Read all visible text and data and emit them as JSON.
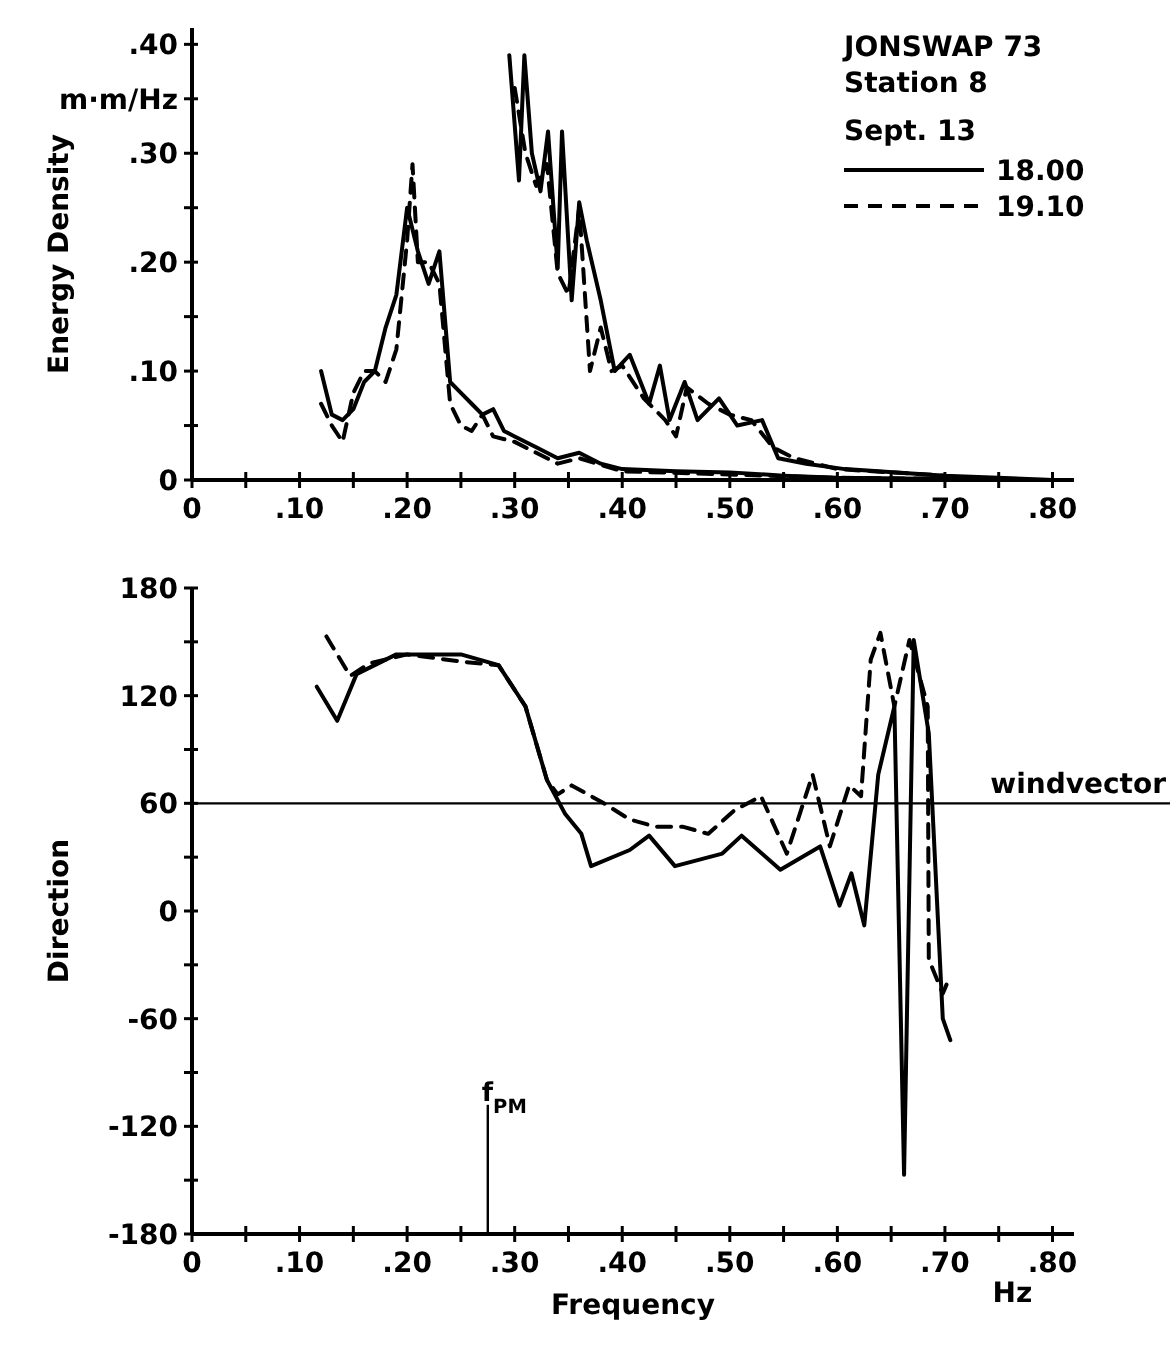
{
  "chart_data": [
    {
      "type": "line",
      "title": "JONSWAP 73",
      "subtitle": "Station 8",
      "ylabel": "Energy Density",
      "legend_title": "Sept. 13",
      "legend": "top right",
      "annotations": [
        "m·m/Hz"
      ],
      "xlim": [
        0,
        0.82
      ],
      "ylim": [
        0,
        0.415
      ],
      "xticks": [
        0,
        {
          "value": 0.05,
          "label": null
        },
        {
          "value": 0.1,
          "label": ".10"
        },
        {
          "value": 0.15,
          "label": null
        },
        {
          "value": 0.2,
          "label": ".20"
        },
        {
          "value": 0.25,
          "label": null
        },
        {
          "value": 0.3,
          "label": ".30"
        },
        {
          "value": 0.35,
          "label": null
        },
        {
          "value": 0.4,
          "label": ".40"
        },
        {
          "value": 0.45,
          "label": null
        },
        {
          "value": 0.5,
          "label": ".50"
        },
        {
          "value": 0.55,
          "label": null
        },
        {
          "value": 0.6,
          "label": ".60"
        },
        {
          "value": 0.65,
          "label": null
        },
        {
          "value": 0.7,
          "label": ".70"
        },
        {
          "value": 0.75,
          "label": null
        },
        {
          "value": 0.8,
          "label": ".80"
        }
      ],
      "yticks": [
        0,
        {
          "value": 0.05,
          "label": null
        },
        {
          "value": 0.1,
          "label": ".10"
        },
        {
          "value": 0.15,
          "label": null
        },
        {
          "value": 0.2,
          "label": ".20"
        },
        {
          "value": 0.25,
          "label": null
        },
        {
          "value": 0.3,
          "label": ".30"
        },
        {
          "value": 0.35,
          "label": null
        },
        {
          "value": 0.4,
          "label": ".40"
        }
      ],
      "series": [
        {
          "name": "18.00",
          "color": "#000000",
          "line_style": "solid",
          "x": [
            0.12,
            0.13,
            0.14,
            0.15,
            0.16,
            0.17,
            0.18,
            0.19,
            0.2,
            0.21,
            0.22,
            0.23,
            0.24,
            0.25,
            0.26,
            0.27,
            0.28,
            0.29,
            0.3,
            0.32,
            0.34,
            0.36,
            0.38,
            0.4,
            0.45,
            0.5,
            0.55,
            0.6,
            0.7,
            0.8
          ],
          "values": [
            0.1,
            0.06,
            0.055,
            0.065,
            0.09,
            0.1,
            0.14,
            0.17,
            0.25,
            0.21,
            0.18,
            0.21,
            0.09,
            0.08,
            0.07,
            0.06,
            0.065,
            0.045,
            0.04,
            0.03,
            0.02,
            0.025,
            0.015,
            0.01,
            0.008,
            0.007,
            0.004,
            0.002,
            0.001,
            0
          ]
        },
        {
          "name": "19.10",
          "color": "#000000",
          "line_style": "dashed",
          "x": [
            0.12,
            0.13,
            0.14,
            0.15,
            0.16,
            0.17,
            0.18,
            0.19,
            0.2,
            0.205,
            0.21,
            0.22,
            0.23,
            0.24,
            0.25,
            0.26,
            0.27,
            0.28,
            0.3,
            0.32,
            0.34,
            0.36,
            0.4,
            0.5,
            0.6,
            0.7
          ],
          "values": [
            0.07,
            0.05,
            0.035,
            0.08,
            0.1,
            0.1,
            0.09,
            0.12,
            0.22,
            0.29,
            0.2,
            0.2,
            0.18,
            0.07,
            0.05,
            0.045,
            0.06,
            0.04,
            0.035,
            0.025,
            0.015,
            0.02,
            0.008,
            0.005,
            0.002,
            0.001
          ]
        },
        {
          "color": "#000000",
          "line_style": "solid",
          "x": [
            0.295,
            0.304,
            0.309,
            0.316,
            0.324,
            0.331,
            0.34,
            0.344,
            0.353,
            0.36,
            0.367,
            0.38,
            0.393,
            0.407,
            0.425,
            0.435,
            0.444,
            0.458,
            0.47,
            0.49,
            0.507,
            0.53,
            0.545,
            0.571,
            0.607,
            0.7,
            0.8
          ],
          "values": [
            0.39,
            0.275,
            0.39,
            0.3,
            0.265,
            0.32,
            0.195,
            0.32,
            0.165,
            0.255,
            0.22,
            0.165,
            0.1,
            0.115,
            0.07,
            0.105,
            0.055,
            0.09,
            0.055,
            0.075,
            0.05,
            0.055,
            0.02,
            0.015,
            0.01,
            0.004,
            0
          ]
        },
        {
          "color": "#000000",
          "line_style": "dashed",
          "x": [
            0.3,
            0.31,
            0.32,
            0.33,
            0.34,
            0.35,
            0.36,
            0.37,
            0.38,
            0.39,
            0.4,
            0.42,
            0.44,
            0.45,
            0.46,
            0.48,
            0.5,
            0.52,
            0.54,
            0.56,
            0.6,
            0.7
          ],
          "values": [
            0.36,
            0.3,
            0.27,
            0.29,
            0.19,
            0.17,
            0.25,
            0.1,
            0.14,
            0.1,
            0.105,
            0.075,
            0.055,
            0.04,
            0.085,
            0.07,
            0.06,
            0.055,
            0.03,
            0.02,
            0.01,
            0.004
          ]
        }
      ]
    },
    {
      "type": "line",
      "xlabel": "Frequency",
      "ylabel": "Direction",
      "annotations": [
        "Hz"
      ],
      "xlim": [
        0,
        0.82
      ],
      "ylim": [
        -180,
        180
      ],
      "xticks": [
        0,
        {
          "value": 0.05,
          "label": null
        },
        {
          "value": 0.1,
          "label": ".10"
        },
        {
          "value": 0.15,
          "label": null
        },
        {
          "value": 0.2,
          "label": ".20"
        },
        {
          "value": 0.25,
          "label": null
        },
        {
          "value": 0.3,
          "label": ".30"
        },
        {
          "value": 0.35,
          "label": null
        },
        {
          "value": 0.4,
          "label": ".40"
        },
        {
          "value": 0.45,
          "label": null
        },
        {
          "value": 0.5,
          "label": ".50"
        },
        {
          "value": 0.55,
          "label": null
        },
        {
          "value": 0.6,
          "label": ".60"
        },
        {
          "value": 0.65,
          "label": null
        },
        {
          "value": 0.7,
          "label": ".70"
        },
        {
          "value": 0.75,
          "label": null
        },
        {
          "value": 0.8,
          "label": ".80"
        }
      ],
      "yticks": [
        -180,
        {
          "value": -150,
          "label": null
        },
        -120,
        {
          "value": -90,
          "label": null
        },
        -60,
        {
          "value": -30,
          "label": null
        },
        0,
        {
          "value": 30,
          "label": null
        },
        60,
        {
          "value": 90,
          "label": null
        },
        120,
        {
          "value": 150,
          "label": null
        },
        180
      ],
      "ref_lines": [
        {
          "axis": "y",
          "value": 60,
          "label": "windvector"
        },
        {
          "axis": "x",
          "value": 0.275,
          "label": "f$_{PM}$"
        }
      ],
      "series": [
        {
          "color": "#000000",
          "line_style": "solid",
          "x": [
            0.116,
            0.135,
            0.153,
            0.19,
            0.25,
            0.285,
            0.31,
            0.33,
            0.347,
            0.362,
            0.371,
            0.407,
            0.425,
            0.449,
            0.493,
            0.511,
            0.547,
            0.584,
            0.602,
            0.613,
            0.625,
            0.638,
            0.653,
            0.662,
            0.671,
            0.685,
            0.698,
            0.705
          ],
          "values": [
            125,
            106,
            132,
            143,
            143,
            137,
            114,
            73,
            54,
            43,
            25,
            34,
            42,
            25,
            32,
            42,
            23,
            36,
            3,
            21,
            -8,
            76,
            114,
            -147,
            151,
            99,
            -60,
            -72
          ]
        },
        {
          "color": "#000000",
          "line_style": "dashed",
          "x": [
            0.125,
            0.147,
            0.165,
            0.2,
            0.25,
            0.285,
            0.31,
            0.33,
            0.34,
            0.353,
            0.383,
            0.407,
            0.431,
            0.456,
            0.48,
            0.504,
            0.529,
            0.553,
            0.577,
            0.593,
            0.611,
            0.622,
            0.631,
            0.64,
            0.653,
            0.667,
            0.684,
            0.685,
            0.698,
            0.705
          ],
          "values": [
            153,
            131,
            138,
            143,
            139,
            137,
            114,
            73,
            65,
            70,
            60,
            51,
            47,
            47,
            43,
            56,
            64,
            32,
            76,
            36,
            70,
            64,
            140,
            155,
            114,
            151,
            114,
            -27,
            -46,
            -36
          ]
        }
      ]
    }
  ]
}
